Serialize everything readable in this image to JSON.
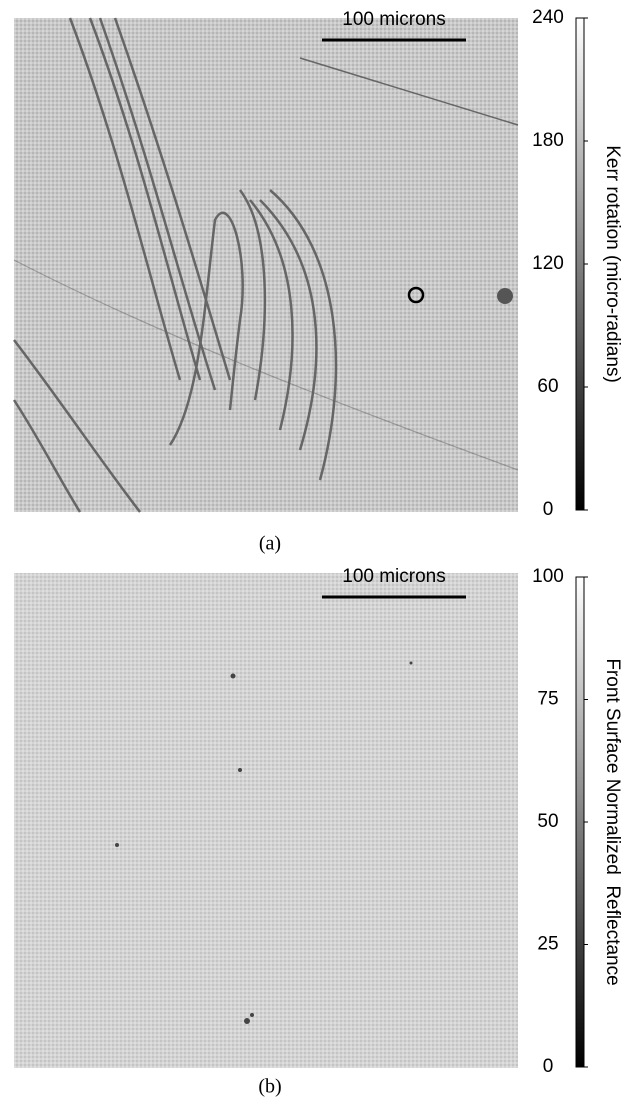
{
  "chart_data": [
    {
      "type": "image",
      "annotation": "100 microns",
      "colorbar_label": "Kerr rotation (micro-radians)",
      "caption": "(a)",
      "ylim": [
        0,
        240
      ],
      "yticks": [
        0,
        60,
        120,
        180,
        240
      ]
    },
    {
      "type": "image",
      "annotation": "100 microns",
      "colorbar_label": "Front Surface Normalized  Reflectance",
      "caption": "(b)",
      "ylim": [
        0,
        100
      ],
      "yticks": [
        0,
        25,
        50,
        75,
        100
      ]
    }
  ]
}
